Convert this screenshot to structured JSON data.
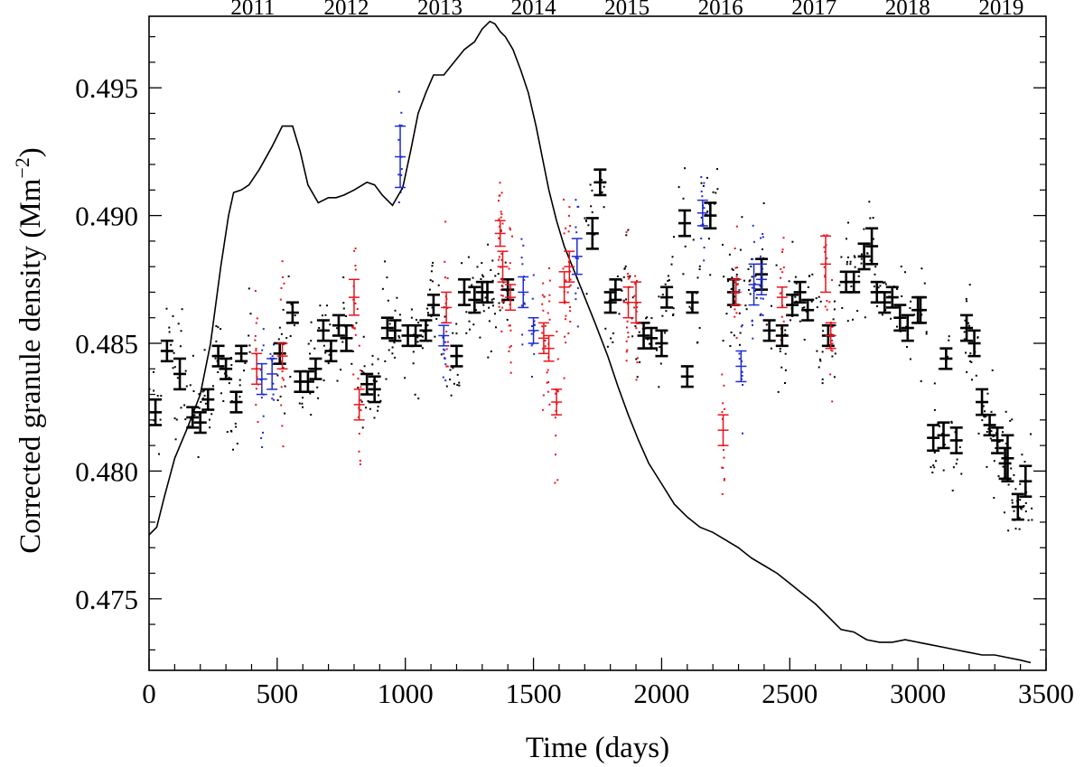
{
  "chart_data": {
    "type": "scatter",
    "title": "",
    "xlabel": "Time (days)",
    "ylabel_main": "Corrected granule density (Mm",
    "ylabel_sup": "−2",
    "ylabel_close": ")",
    "xlim": [
      0,
      3500
    ],
    "ylim": [
      0.4722,
      0.4978
    ],
    "x_ticks": [
      0,
      500,
      1000,
      1500,
      2000,
      2500,
      3000,
      3500
    ],
    "x_tick_labels": [
      "0",
      "500",
      "1000",
      "1500",
      "2000",
      "2500",
      "3000",
      "3500"
    ],
    "y_ticks": [
      0.475,
      0.48,
      0.485,
      0.49,
      0.495
    ],
    "y_tick_labels": [
      "0.475",
      "0.480",
      "0.485",
      "0.490",
      "0.495"
    ],
    "top_axis": {
      "labels": [
        "2011",
        "2012",
        "2013",
        "2014",
        "2015",
        "2016",
        "2017",
        "2018",
        "2019"
      ],
      "positions_days": [
        405,
        770,
        1135,
        1500,
        1865,
        2230,
        2595,
        2960,
        3325
      ]
    },
    "colors": {
      "black": "#000000",
      "red": "#e8141c",
      "blue": "#1f2bd1"
    },
    "grid": false,
    "legend": "none",
    "series": [
      {
        "color": "black",
        "points": [
          [
            25,
            0.4823,
            0.0005
          ],
          [
            70,
            0.4847,
            0.0004
          ],
          [
            120,
            0.4838,
            0.0006
          ],
          [
            170,
            0.4821,
            0.0004
          ],
          [
            200,
            0.4819,
            0.0004
          ],
          [
            230,
            0.4828,
            0.0004
          ],
          [
            270,
            0.4845,
            0.0004
          ],
          [
            300,
            0.484,
            0.0004
          ],
          [
            340,
            0.4827,
            0.0004
          ],
          [
            360,
            0.4846,
            0.0003
          ],
          [
            510,
            0.4846,
            0.0004
          ],
          [
            560,
            0.4862,
            0.0004
          ],
          [
            590,
            0.4835,
            0.0004
          ],
          [
            620,
            0.4835,
            0.0004
          ],
          [
            650,
            0.484,
            0.0004
          ],
          [
            680,
            0.4855,
            0.0004
          ],
          [
            710,
            0.4847,
            0.0004
          ],
          [
            740,
            0.4857,
            0.0004
          ],
          [
            770,
            0.4852,
            0.0005
          ],
          [
            850,
            0.4834,
            0.0004
          ],
          [
            880,
            0.4832,
            0.0005
          ],
          [
            930,
            0.4856,
            0.0004
          ],
          [
            960,
            0.4855,
            0.0004
          ],
          [
            1010,
            0.4853,
            0.0004
          ],
          [
            1040,
            0.4853,
            0.0004
          ],
          [
            1080,
            0.4855,
            0.0004
          ],
          [
            1110,
            0.4865,
            0.0004
          ],
          [
            1200,
            0.4845,
            0.0004
          ],
          [
            1230,
            0.487,
            0.0005
          ],
          [
            1270,
            0.4867,
            0.0005
          ],
          [
            1300,
            0.487,
            0.0004
          ],
          [
            1320,
            0.487,
            0.0004
          ],
          [
            1400,
            0.4871,
            0.0004
          ],
          [
            1730,
            0.4893,
            0.0006
          ],
          [
            1760,
            0.4913,
            0.0005
          ],
          [
            1800,
            0.4866,
            0.0004
          ],
          [
            1820,
            0.4871,
            0.0004
          ],
          [
            1930,
            0.4853,
            0.0005
          ],
          [
            1960,
            0.4852,
            0.0004
          ],
          [
            2000,
            0.485,
            0.0005
          ],
          [
            2020,
            0.4868,
            0.0004
          ],
          [
            2090,
            0.4897,
            0.0005
          ],
          [
            2100,
            0.4837,
            0.0004
          ],
          [
            2120,
            0.4866,
            0.0004
          ],
          [
            2190,
            0.49,
            0.0005
          ],
          [
            2280,
            0.487,
            0.0005
          ],
          [
            2390,
            0.4877,
            0.0006
          ],
          [
            2420,
            0.4855,
            0.0004
          ],
          [
            2470,
            0.4853,
            0.0004
          ],
          [
            2510,
            0.4865,
            0.0004
          ],
          [
            2540,
            0.487,
            0.0004
          ],
          [
            2570,
            0.4863,
            0.0004
          ],
          [
            2650,
            0.4853,
            0.0004
          ],
          [
            2720,
            0.4874,
            0.0004
          ],
          [
            2750,
            0.4874,
            0.0004
          ],
          [
            2790,
            0.4884,
            0.0005
          ],
          [
            2820,
            0.4888,
            0.0007
          ],
          [
            2840,
            0.487,
            0.0004
          ],
          [
            2870,
            0.4866,
            0.0004
          ],
          [
            2900,
            0.4868,
            0.0004
          ],
          [
            2930,
            0.486,
            0.0005
          ],
          [
            2960,
            0.4856,
            0.0005
          ],
          [
            3000,
            0.4863,
            0.0005
          ],
          [
            3010,
            0.4863,
            0.0005
          ],
          [
            3060,
            0.4813,
            0.0005
          ],
          [
            3100,
            0.4814,
            0.0005
          ],
          [
            3110,
            0.4844,
            0.0004
          ],
          [
            3150,
            0.4812,
            0.0005
          ],
          [
            3190,
            0.4856,
            0.0005
          ],
          [
            3220,
            0.485,
            0.0005
          ],
          [
            3250,
            0.4827,
            0.0005
          ],
          [
            3280,
            0.4818,
            0.0004
          ],
          [
            3310,
            0.4812,
            0.0005
          ],
          [
            3340,
            0.4803,
            0.0006
          ],
          [
            3350,
            0.4805,
            0.0009
          ],
          [
            3390,
            0.4786,
            0.0005
          ],
          [
            3420,
            0.4796,
            0.0006
          ]
        ]
      },
      {
        "color": "red",
        "points": [
          [
            420,
            0.484,
            0.0006
          ],
          [
            520,
            0.4845,
            0.0005
          ],
          [
            800,
            0.4868,
            0.0007
          ],
          [
            820,
            0.4826,
            0.0006
          ],
          [
            1160,
            0.4864,
            0.0006
          ],
          [
            1370,
            0.4893,
            0.0005
          ],
          [
            1380,
            0.488,
            0.0006
          ],
          [
            1410,
            0.4868,
            0.0005
          ],
          [
            1540,
            0.4852,
            0.0006
          ],
          [
            1560,
            0.4848,
            0.0005
          ],
          [
            1590,
            0.4827,
            0.0005
          ],
          [
            1620,
            0.4872,
            0.0006
          ],
          [
            1640,
            0.488,
            0.0006
          ],
          [
            1870,
            0.4866,
            0.0006
          ],
          [
            1900,
            0.4866,
            0.0008
          ],
          [
            2240,
            0.4816,
            0.0006
          ],
          [
            2290,
            0.487,
            0.0005
          ],
          [
            2470,
            0.4868,
            0.0004
          ],
          [
            2640,
            0.4881,
            0.0011
          ],
          [
            2660,
            0.4853,
            0.0005
          ]
        ]
      },
      {
        "color": "blue",
        "points": [
          [
            440,
            0.4836,
            0.0006
          ],
          [
            480,
            0.4838,
            0.0006
          ],
          [
            980,
            0.4923,
            0.0012
          ],
          [
            1150,
            0.4853,
            0.0004
          ],
          [
            1460,
            0.487,
            0.0006
          ],
          [
            1500,
            0.4855,
            0.0005
          ],
          [
            1670,
            0.4884,
            0.0007
          ],
          [
            2160,
            0.4901,
            0.0005
          ],
          [
            2310,
            0.4841,
            0.0006
          ],
          [
            2360,
            0.4873,
            0.0008
          ],
          [
            2390,
            0.4875,
            0.0006
          ]
        ]
      }
    ],
    "scatter_clouds": [
      {
        "color": "black",
        "x_ranges_days": [
          [
            0,
            400
          ],
          [
            500,
            1400
          ],
          [
            1700,
            3450
          ]
        ],
        "points_per_100_days": 22,
        "y_mean_source": "black series",
        "y_spread": 0.0022
      },
      {
        "color": "red",
        "x_days": [
          420,
          520,
          800,
          820,
          1160,
          1370,
          1380,
          1410,
          1540,
          1560,
          1590,
          1620,
          1640,
          1870,
          1900,
          2240,
          2290,
          2470,
          2640,
          2660
        ],
        "points_each": 14,
        "y_spread": 0.003
      },
      {
        "color": "blue",
        "x_days": [
          440,
          480,
          980,
          1150,
          1460,
          1500,
          1670,
          2160,
          2310,
          2360,
          2390
        ],
        "points_each": 12,
        "y_spread": 0.0026
      }
    ],
    "activity_curve": {
      "color": "black",
      "x": [
        0,
        30,
        60,
        100,
        150,
        200,
        240,
        280,
        310,
        330,
        360,
        390,
        430,
        480,
        520,
        560,
        590,
        620,
        660,
        700,
        730,
        760,
        800,
        850,
        880,
        910,
        950,
        990,
        1020,
        1050,
        1080,
        1110,
        1150,
        1190,
        1230,
        1270,
        1300,
        1330,
        1350,
        1370,
        1390,
        1420,
        1450,
        1480,
        1510,
        1540,
        1560,
        1590,
        1620,
        1660,
        1700,
        1740,
        1790,
        1830,
        1870,
        1910,
        1950,
        2000,
        2050,
        2100,
        2150,
        2200,
        2250,
        2300,
        2350,
        2400,
        2450,
        2500,
        2550,
        2600,
        2650,
        2700,
        2750,
        2800,
        2850,
        2900,
        2950,
        3000,
        3050,
        3100,
        3150,
        3200,
        3250,
        3300,
        3350,
        3400,
        3440
      ],
      "y": [
        0.4775,
        0.4778,
        0.479,
        0.4805,
        0.4817,
        0.483,
        0.485,
        0.488,
        0.49,
        0.4909,
        0.491,
        0.4912,
        0.4918,
        0.4927,
        0.4935,
        0.4935,
        0.4925,
        0.4912,
        0.4905,
        0.4907,
        0.4907,
        0.4908,
        0.491,
        0.4913,
        0.4912,
        0.4908,
        0.4904,
        0.4911,
        0.4925,
        0.494,
        0.4948,
        0.4955,
        0.4955,
        0.496,
        0.4965,
        0.4968,
        0.4973,
        0.4976,
        0.4975,
        0.4972,
        0.497,
        0.4965,
        0.4957,
        0.4948,
        0.4935,
        0.492,
        0.491,
        0.4898,
        0.4888,
        0.4878,
        0.4868,
        0.4858,
        0.4845,
        0.4833,
        0.4822,
        0.4812,
        0.4803,
        0.4795,
        0.4787,
        0.4782,
        0.4778,
        0.4776,
        0.4773,
        0.477,
        0.4766,
        0.4763,
        0.476,
        0.4756,
        0.4752,
        0.4748,
        0.4743,
        0.4738,
        0.4737,
        0.4734,
        0.4733,
        0.4733,
        0.4734,
        0.4733,
        0.4732,
        0.4731,
        0.473,
        0.4729,
        0.4728,
        0.4728,
        0.4727,
        0.4726,
        0.4725
      ]
    }
  }
}
